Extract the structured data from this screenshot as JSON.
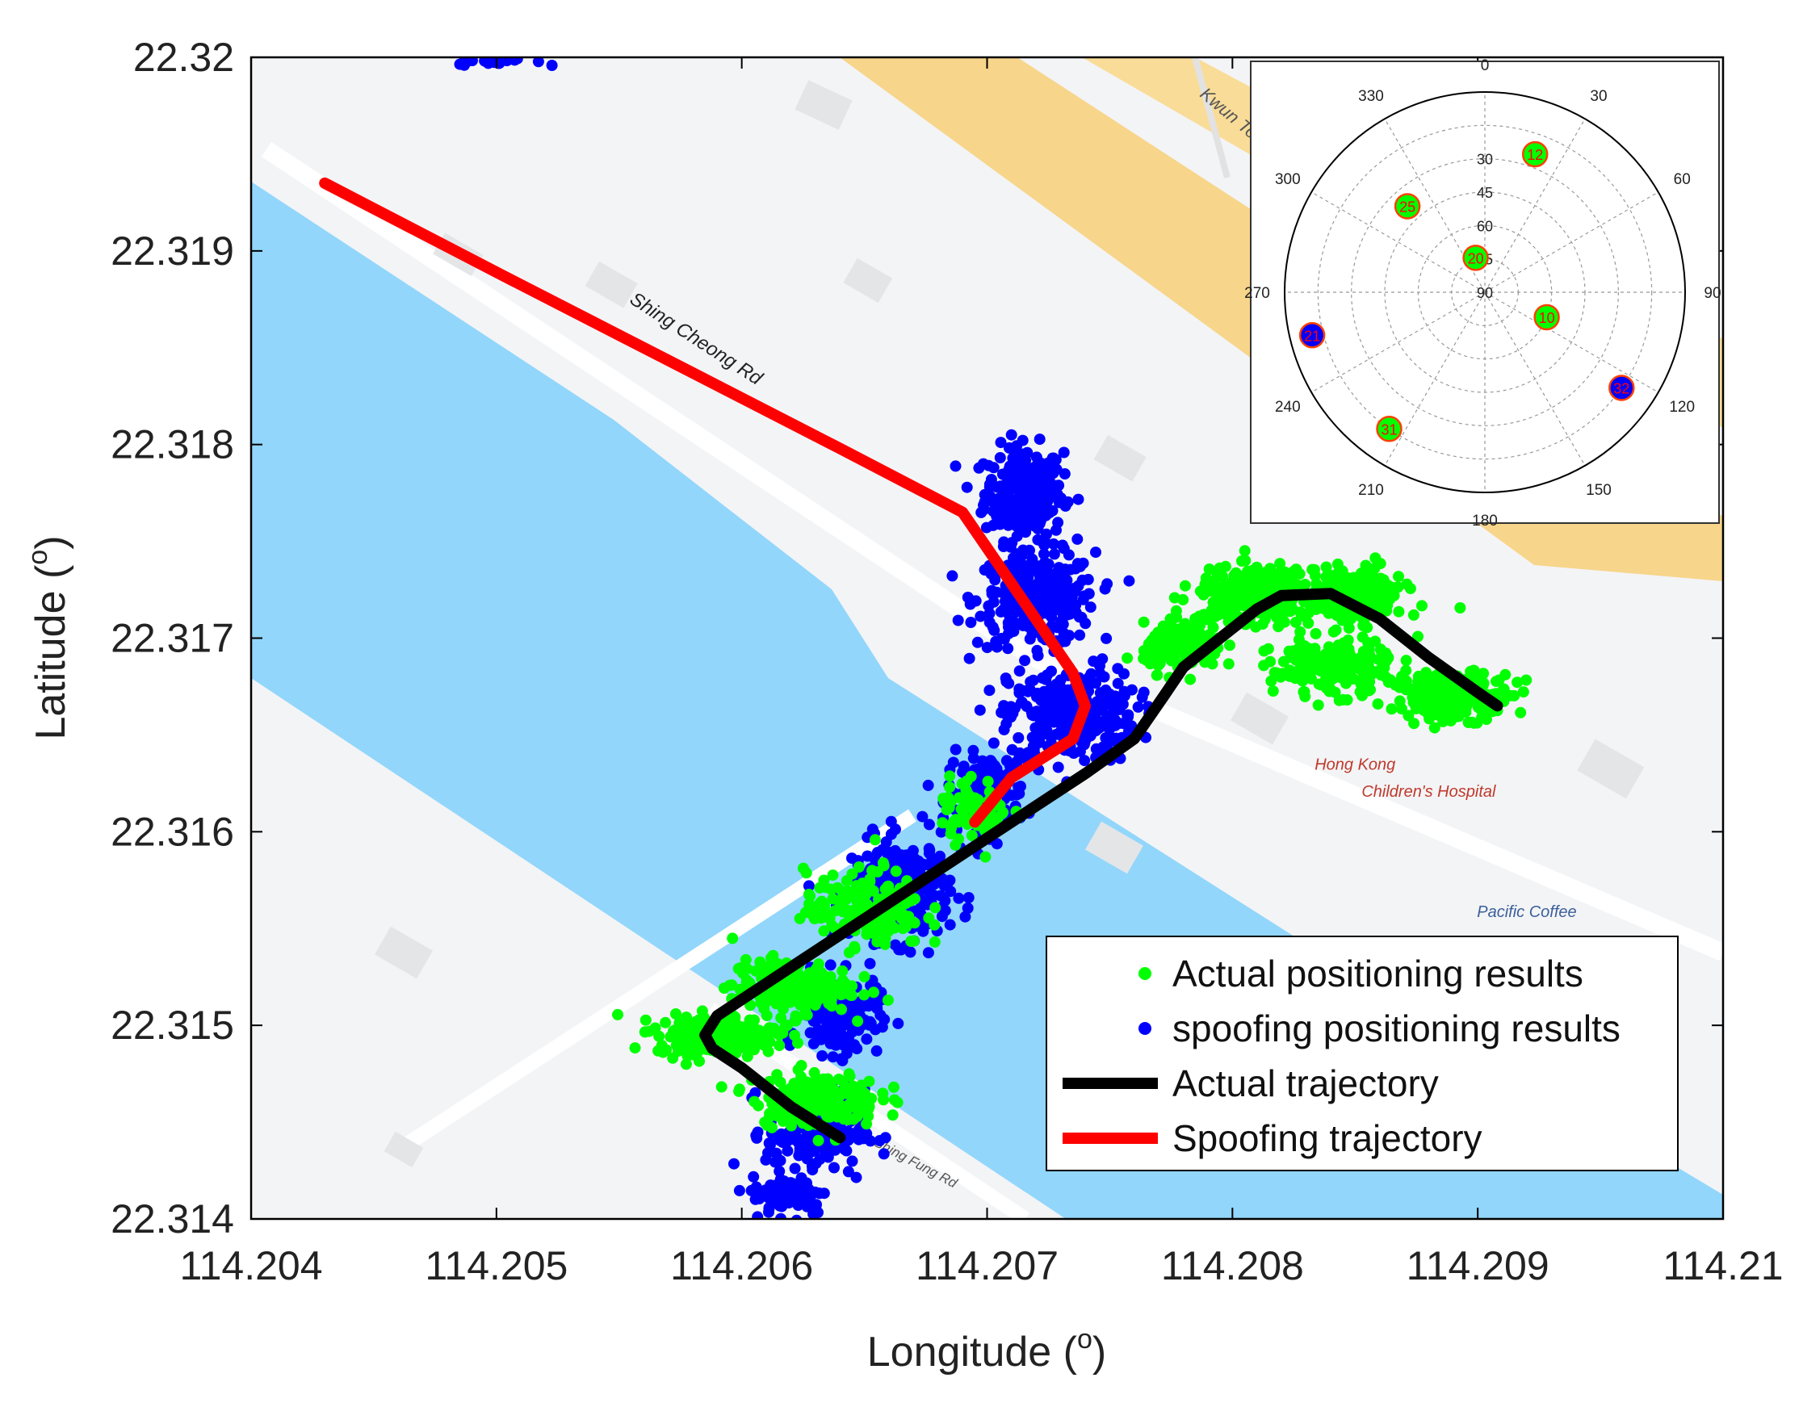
{
  "chart_data": {
    "type": "scatter",
    "xlabel": "Longitude (",
    "ylabel": "Latitude (",
    "unit_sup": "o",
    "unit_close": ")",
    "xlim": [
      114.204,
      114.21
    ],
    "ylim": [
      22.314,
      22.32
    ],
    "x_ticks": [
      "114.204",
      "114.205",
      "114.206",
      "114.207",
      "114.208",
      "114.209",
      "114.21"
    ],
    "y_ticks": [
      "22.314",
      "22.315",
      "22.316",
      "22.317",
      "22.318",
      "22.319",
      "22.32"
    ],
    "legend_position": "bottom-right",
    "legend": [
      {
        "label": "Actual positioning results",
        "marker": "dot",
        "color": "#00ff00"
      },
      {
        "label": "spoofing positioning results",
        "marker": "dot",
        "color": "#0000ff"
      },
      {
        "label": "Actual trajectory",
        "marker": "line",
        "color": "#000000"
      },
      {
        "label": "Spoofing trajectory",
        "marker": "line",
        "color": "#ff0000"
      }
    ],
    "series": [
      {
        "name": "Actual trajectory",
        "kind": "line",
        "color": "#000000",
        "points": [
          [
            114.2064,
            22.31442
          ],
          [
            114.2062,
            22.31458
          ],
          [
            114.206,
            22.31478
          ],
          [
            114.20588,
            22.31488
          ],
          [
            114.20585,
            22.31495
          ],
          [
            114.2059,
            22.31505
          ],
          [
            114.2062,
            22.3153
          ],
          [
            114.2065,
            22.31555
          ],
          [
            114.2068,
            22.3158
          ],
          [
            114.2071,
            22.31605
          ],
          [
            114.2074,
            22.3163
          ],
          [
            114.2076,
            22.31648
          ],
          [
            114.20772,
            22.3167
          ],
          [
            114.2078,
            22.31685
          ],
          [
            114.20795,
            22.317
          ],
          [
            114.2081,
            22.31715
          ],
          [
            114.2082,
            22.31722
          ],
          [
            114.2084,
            22.31723
          ],
          [
            114.2086,
            22.3171
          ],
          [
            114.2088,
            22.3169
          ],
          [
            114.209,
            22.31672
          ],
          [
            114.20908,
            22.31665
          ]
        ]
      },
      {
        "name": "Spoofing trajectory",
        "kind": "line",
        "color": "#ff0000",
        "points": [
          [
            114.2043,
            22.31935
          ],
          [
            114.205,
            22.31889
          ],
          [
            114.2058,
            22.31837
          ],
          [
            114.2064,
            22.31798
          ],
          [
            114.2069,
            22.31765
          ],
          [
            114.20735,
            22.31682
          ],
          [
            114.2074,
            22.31665
          ],
          [
            114.20735,
            22.31648
          ],
          [
            114.2071,
            22.31628
          ],
          [
            114.20695,
            22.31605
          ]
        ]
      },
      {
        "name": "Actual positioning results",
        "kind": "clusters",
        "color": "#00ff00",
        "clusters": [
          {
            "x": 114.2059,
            "y": 22.31495,
            "sx": 0.00012,
            "sy": 5e-05,
            "n": 260
          },
          {
            "x": 114.2062,
            "y": 22.3152,
            "sx": 0.00012,
            "sy": 7e-05,
            "n": 200
          },
          {
            "x": 114.2065,
            "y": 22.3156,
            "sx": 0.00012,
            "sy": 0.0001,
            "n": 180
          },
          {
            "x": 114.2063,
            "y": 22.31462,
            "sx": 0.00013,
            "sy": 7e-05,
            "n": 190
          },
          {
            "x": 114.20695,
            "y": 22.31612,
            "sx": 7e-05,
            "sy": 8e-05,
            "n": 70
          },
          {
            "x": 114.2078,
            "y": 22.31695,
            "sx": 8e-05,
            "sy": 6e-05,
            "n": 140
          },
          {
            "x": 114.2081,
            "y": 22.31722,
            "sx": 0.00012,
            "sy": 7e-05,
            "n": 300
          },
          {
            "x": 114.2085,
            "y": 22.31722,
            "sx": 0.0001,
            "sy": 7e-05,
            "n": 230
          },
          {
            "x": 114.2084,
            "y": 22.31685,
            "sx": 0.00012,
            "sy": 7e-05,
            "n": 200
          },
          {
            "x": 114.2089,
            "y": 22.3167,
            "sx": 0.00012,
            "sy": 6e-05,
            "n": 220
          }
        ]
      },
      {
        "name": "spoofing positioning results",
        "kind": "clusters",
        "color": "#0000ff",
        "clusters": [
          {
            "x": 114.20715,
            "y": 22.31775,
            "sx": 8e-05,
            "sy": 0.00012,
            "n": 260
          },
          {
            "x": 114.2072,
            "y": 22.3172,
            "sx": 0.00012,
            "sy": 0.00012,
            "n": 320
          },
          {
            "x": 114.20735,
            "y": 22.3166,
            "sx": 0.00013,
            "sy": 0.00012,
            "n": 330
          },
          {
            "x": 114.207,
            "y": 22.3162,
            "sx": 8e-05,
            "sy": 0.0001,
            "n": 150
          },
          {
            "x": 114.20665,
            "y": 22.3157,
            "sx": 0.0001,
            "sy": 0.00013,
            "n": 240
          },
          {
            "x": 114.2064,
            "y": 22.31505,
            "sx": 8e-05,
            "sy": 0.0001,
            "n": 180
          },
          {
            "x": 114.2063,
            "y": 22.31445,
            "sx": 0.0001,
            "sy": 0.00011,
            "n": 200
          },
          {
            "x": 114.2062,
            "y": 22.31412,
            "sx": 8e-05,
            "sy": 5e-05,
            "n": 90
          },
          {
            "x": 114.205,
            "y": 22.31998,
            "sx": 8e-05,
            "sy": 1e-05,
            "n": 30
          }
        ]
      }
    ],
    "skyplot": {
      "azimuth_labels": [
        "0",
        "30",
        "60",
        "90",
        "120",
        "150",
        "180",
        "210",
        "240",
        "270",
        "300",
        "330"
      ],
      "elevation_labels": [
        "30",
        "45",
        "60",
        "75",
        "90"
      ],
      "satellites": [
        {
          "prn": "12",
          "azimuth": 20,
          "elevation": 24,
          "fill": "#00ff00",
          "ring": "#ff4000",
          "text_color": "#ff0000"
        },
        {
          "prn": "25",
          "azimuth": 318,
          "elevation": 38,
          "fill": "#00ff00",
          "ring": "#ff4000",
          "text_color": "#ff0000"
        },
        {
          "prn": "20",
          "azimuth": 345,
          "elevation": 74,
          "fill": "#00ff00",
          "ring": "#ff4000",
          "text_color": "#ff0000"
        },
        {
          "prn": "10",
          "azimuth": 112,
          "elevation": 60,
          "fill": "#00ff00",
          "ring": "#ff4000",
          "text_color": "#ff0000"
        },
        {
          "prn": "21",
          "azimuth": 256,
          "elevation": 10,
          "fill": "#0000ff",
          "ring": "#ff4000",
          "text_color": "#ff0000"
        },
        {
          "prn": "32",
          "azimuth": 125,
          "elevation": 15,
          "fill": "#0000ff",
          "ring": "#ff4000",
          "text_color": "#ff0000"
        },
        {
          "prn": "31",
          "azimuth": 215,
          "elevation": 15,
          "fill": "#00ff00",
          "ring": "#ff4000",
          "text_color": "#ff0000"
        }
      ]
    },
    "map_labels": [
      {
        "text": "Shing Cheong Rd",
        "lon": 114.2058,
        "lat": 22.31852,
        "angle": 33,
        "size": 24,
        "color": "#222222"
      },
      {
        "text": "Kwun Tong Bypass",
        "lon": 114.2081,
        "lat": 22.31955,
        "angle": 40,
        "size": 22,
        "color": "#555555"
      },
      {
        "text": "Hong Kong",
        "lon": 114.2085,
        "lat": 22.31632,
        "angle": 0,
        "size": 20,
        "color": "#c0392b"
      },
      {
        "text": "Children's Hospital",
        "lon": 114.2088,
        "lat": 22.31618,
        "angle": 0,
        "size": 20,
        "color": "#c0392b"
      },
      {
        "text": "Pacific Coffee",
        "lon": 114.2092,
        "lat": 22.31556,
        "angle": 0,
        "size": 20,
        "color": "#3a5f9a"
      },
      {
        "text": "Shing Fung Rd",
        "lon": 114.2067,
        "lat": 22.31427,
        "angle": 28,
        "size": 17,
        "color": "#555555"
      }
    ]
  }
}
